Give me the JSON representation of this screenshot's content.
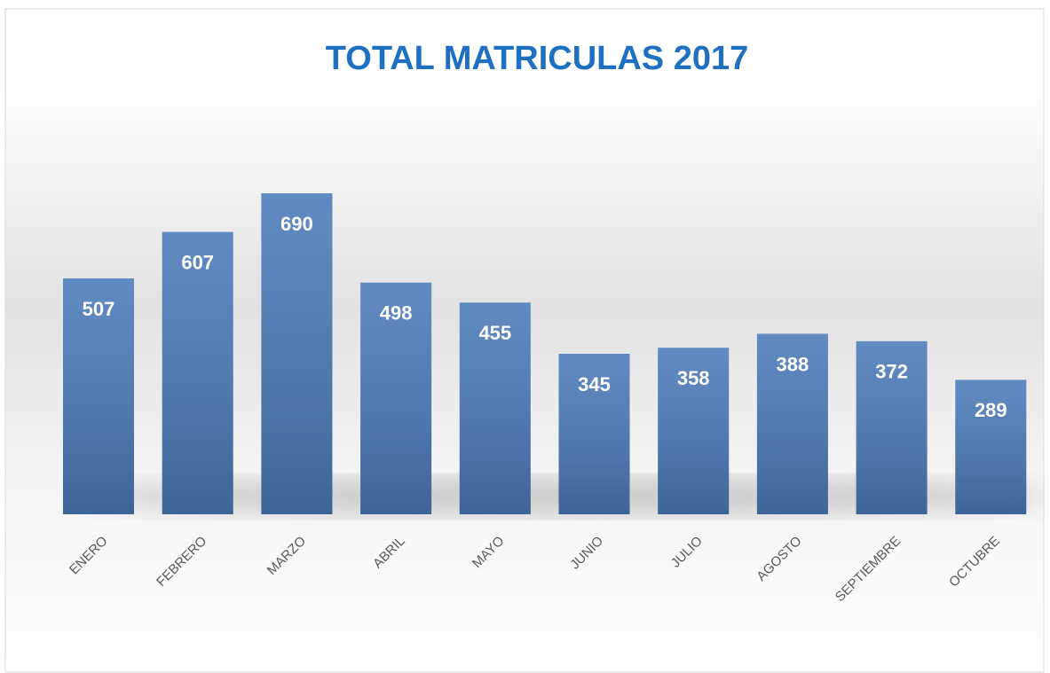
{
  "chart_data": {
    "type": "bar",
    "title": "TOTAL MATRICULAS 2017",
    "categories": [
      "ENERO",
      "FEBRERO",
      "MARZO",
      "ABRIL",
      "MAYO",
      "JUNIO",
      "JULIO",
      "AGOSTO",
      "SEPTIEMBRE",
      "OCTUBRE"
    ],
    "values": [
      507,
      607,
      690,
      498,
      455,
      345,
      358,
      388,
      372,
      289
    ],
    "color": "#4a7ab8"
  }
}
